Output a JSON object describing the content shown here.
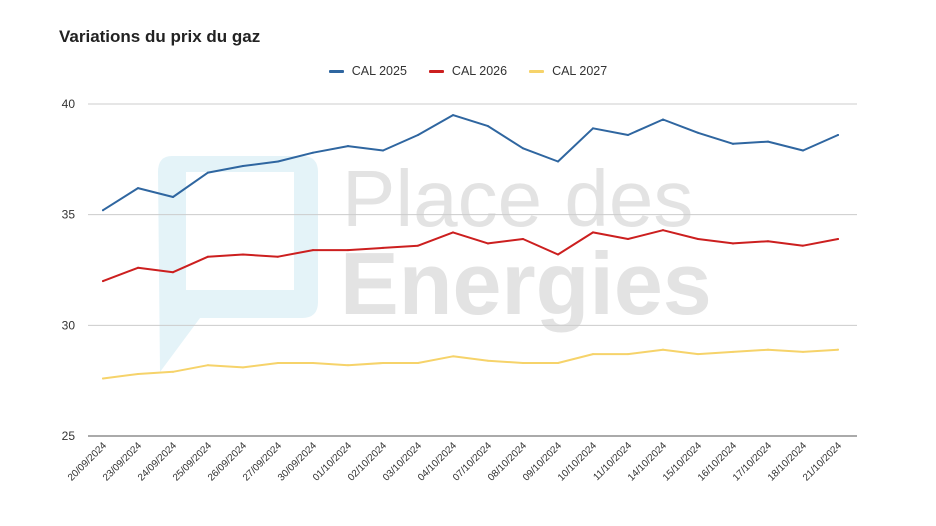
{
  "chart_data": {
    "type": "line",
    "title": "Variations du prix du gaz",
    "xlabel": "",
    "ylabel": "",
    "ylim": [
      25,
      40
    ],
    "yticks": [
      25,
      30,
      35,
      40
    ],
    "grid": true,
    "legend_position": "top-center",
    "categories": [
      "20/09/2024",
      "23/09/2024",
      "24/09/2024",
      "25/09/2024",
      "26/09/2024",
      "27/09/2024",
      "30/09/2024",
      "01/10/2024",
      "02/10/2024",
      "03/10/2024",
      "04/10/2024",
      "07/10/2024",
      "08/10/2024",
      "09/10/2024",
      "10/10/2024",
      "11/10/2024",
      "14/10/2024",
      "15/10/2024",
      "16/10/2024",
      "17/10/2024",
      "18/10/2024",
      "21/10/2024"
    ],
    "series": [
      {
        "name": "CAL 2025",
        "color": "#2f66a0",
        "values": [
          35.2,
          36.2,
          35.8,
          36.9,
          37.2,
          37.4,
          37.8,
          38.1,
          37.9,
          38.6,
          39.5,
          39.0,
          38.0,
          37.4,
          38.9,
          38.6,
          39.3,
          38.7,
          38.2,
          38.3,
          37.9,
          38.6
        ]
      },
      {
        "name": "CAL 2026",
        "color": "#cc1f1f",
        "values": [
          32.0,
          32.6,
          32.4,
          33.1,
          33.2,
          33.1,
          33.4,
          33.4,
          33.5,
          33.6,
          34.2,
          33.7,
          33.9,
          33.2,
          34.2,
          33.9,
          34.3,
          33.9,
          33.7,
          33.8,
          33.6,
          33.9
        ]
      },
      {
        "name": "CAL 2027",
        "color": "#f6d36a",
        "values": [
          27.6,
          27.8,
          27.9,
          28.2,
          28.1,
          28.3,
          28.3,
          28.2,
          28.3,
          28.3,
          28.6,
          28.4,
          28.3,
          28.3,
          28.7,
          28.7,
          28.9,
          28.7,
          28.8,
          28.9,
          28.8,
          28.9
        ]
      }
    ]
  },
  "watermark": {
    "line1": "Place des",
    "line2": "Energies",
    "color": "#e3e3e3",
    "logo_color": "#e4f3f8"
  }
}
